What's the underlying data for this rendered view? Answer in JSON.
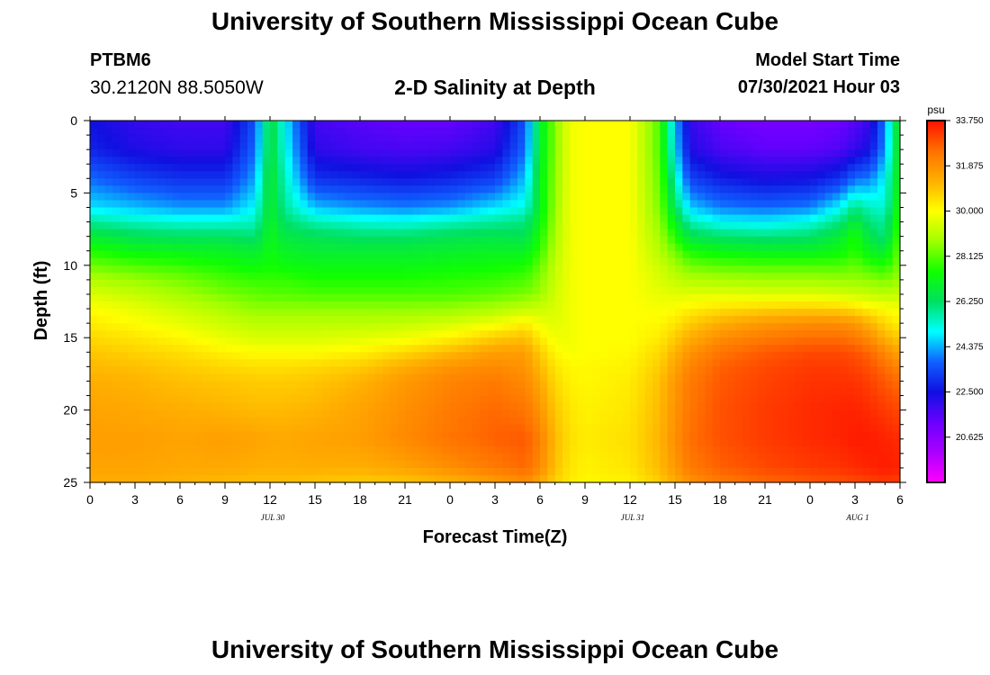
{
  "header": {
    "institution": "University of Southern Mississippi Ocean Cube",
    "station": "PTBM6",
    "coordinates": "30.2120N  88.5050W",
    "plot_title": "2-D Salinity at Depth",
    "model_start_label": "Model Start Time",
    "model_start_value": "07/30/2021 Hour 03"
  },
  "footer": {
    "institution": "University of Southern Mississippi Ocean Cube"
  },
  "chart_data": {
    "type": "heatmap",
    "title": "2-D Salinity at Depth",
    "xlabel": "Forecast Time(Z)",
    "ylabel": "Depth (ft)",
    "x_tick_labels": [
      "0",
      "3",
      "6",
      "9",
      "12",
      "15",
      "18",
      "21",
      "0",
      "3",
      "6",
      "9",
      "12",
      "15",
      "18",
      "21",
      "0",
      "3",
      "6"
    ],
    "x_range_hours": [
      0,
      54
    ],
    "date_labels": [
      {
        "hour": 12,
        "label": "JUL 30"
      },
      {
        "hour": 36,
        "label": "JUL 31"
      },
      {
        "hour": 51,
        "label": "AUG 1"
      }
    ],
    "y_ticks": [
      "0",
      "5",
      "10",
      "15",
      "20",
      "25"
    ],
    "ylim": [
      0,
      25
    ],
    "colorbar": {
      "unit": "psu",
      "min": 18.75,
      "max": 33.75,
      "labels": [
        "33.750",
        "31.875",
        "30.000",
        "28.125",
        "26.250",
        "24.375",
        "22.500",
        "20.625"
      ],
      "colors": [
        "#ff00ff",
        "#aa00ff",
        "#6a00ff",
        "#1010e0",
        "#1060ff",
        "#00ffff",
        "#00e060",
        "#10ff00",
        "#a0ff00",
        "#ffff00",
        "#ffb000",
        "#ff7000",
        "#ff1000"
      ]
    },
    "depths_ft": [
      0,
      2,
      4,
      6,
      7,
      8,
      9,
      10,
      11,
      12,
      13,
      14,
      15,
      16,
      17,
      18,
      20,
      22,
      24,
      25
    ],
    "hours": [
      0,
      3,
      6,
      9,
      11,
      12,
      13,
      15,
      18,
      21,
      24,
      27,
      29,
      30,
      31,
      32,
      33,
      36,
      38,
      39,
      40,
      42,
      45,
      48,
      50,
      51,
      52,
      53,
      54
    ],
    "salinity_psu": [
      [
        22.5,
        22.0,
        21.8,
        21.8,
        23.5,
        26.8,
        25.0,
        21.8,
        21.5,
        21.3,
        21.3,
        21.8,
        23.5,
        26.8,
        28.5,
        29.8,
        30.0,
        30.0,
        28.0,
        24.5,
        22.0,
        21.3,
        21.0,
        21.0,
        21.2,
        21.5,
        22.0,
        24.0,
        27.5
      ],
      [
        22.8,
        22.3,
        22.1,
        22.1,
        23.8,
        26.8,
        25.2,
        22.1,
        21.8,
        21.7,
        21.8,
        22.2,
        23.8,
        26.8,
        28.5,
        29.8,
        30.0,
        30.0,
        28.0,
        24.8,
        22.3,
        21.7,
        21.4,
        21.4,
        21.6,
        22.0,
        22.5,
        24.2,
        27.5
      ],
      [
        23.8,
        23.3,
        23.0,
        23.0,
        24.3,
        27.0,
        25.5,
        23.0,
        22.8,
        22.6,
        22.8,
        23.2,
        24.5,
        27.0,
        28.6,
        29.8,
        30.0,
        30.0,
        28.2,
        25.5,
        23.3,
        22.7,
        22.4,
        22.5,
        23.0,
        23.8,
        24.0,
        25.0,
        27.5
      ],
      [
        24.8,
        24.5,
        24.2,
        24.2,
        25.0,
        27.0,
        25.8,
        24.5,
        24.2,
        24.0,
        24.2,
        24.8,
        25.2,
        27.0,
        28.7,
        29.8,
        30.0,
        30.0,
        28.4,
        26.3,
        24.6,
        24.0,
        23.8,
        24.0,
        25.0,
        26.0,
        25.5,
        25.3,
        27.8
      ],
      [
        25.8,
        25.5,
        25.3,
        25.3,
        25.5,
        27.1,
        26.2,
        25.6,
        25.3,
        25.2,
        25.5,
        25.8,
        26.0,
        27.2,
        28.8,
        29.8,
        30.0,
        30.0,
        28.6,
        27.0,
        25.6,
        25.0,
        24.9,
        25.2,
        26.0,
        26.8,
        26.0,
        25.8,
        28.0
      ],
      [
        26.8,
        26.4,
        26.3,
        26.3,
        26.1,
        27.2,
        26.6,
        26.4,
        26.2,
        26.2,
        26.4,
        26.5,
        26.4,
        27.5,
        28.9,
        29.8,
        30.0,
        30.0,
        28.8,
        27.6,
        26.5,
        26.2,
        26.0,
        26.2,
        26.8,
        27.5,
        26.5,
        26.0,
        28.2
      ],
      [
        27.6,
        27.2,
        27.1,
        27.0,
        26.8,
        27.3,
        27.0,
        26.8,
        26.8,
        26.8,
        26.9,
        27.0,
        27.0,
        27.8,
        29.0,
        29.8,
        30.0,
        30.0,
        29.0,
        28.3,
        27.5,
        27.2,
        27.0,
        27.0,
        27.3,
        27.7,
        27.0,
        26.8,
        28.4
      ],
      [
        28.3,
        28.0,
        27.8,
        27.5,
        27.3,
        27.5,
        27.3,
        27.2,
        27.2,
        27.2,
        27.3,
        27.4,
        27.5,
        28.2,
        29.2,
        29.8,
        30.0,
        30.0,
        29.3,
        28.8,
        28.3,
        28.1,
        28.0,
        28.0,
        28.0,
        28.2,
        27.8,
        27.6,
        28.5
      ],
      [
        29.0,
        28.7,
        28.4,
        28.0,
        27.8,
        27.8,
        27.8,
        27.6,
        27.6,
        27.6,
        27.7,
        27.8,
        28.0,
        28.5,
        29.3,
        29.8,
        30.0,
        30.0,
        29.5,
        29.2,
        29.0,
        28.9,
        28.8,
        28.8,
        28.7,
        28.7,
        28.6,
        28.4,
        28.8
      ],
      [
        29.5,
        29.2,
        28.8,
        28.4,
        28.2,
        28.1,
        28.1,
        28.0,
        28.0,
        28.0,
        28.0,
        28.2,
        28.4,
        28.7,
        29.4,
        29.8,
        30.0,
        30.0,
        29.7,
        29.6,
        29.6,
        29.6,
        29.5,
        29.5,
        29.4,
        29.3,
        29.2,
        29.1,
        29.2
      ],
      [
        30.0,
        29.7,
        29.3,
        28.9,
        28.6,
        28.6,
        28.6,
        28.6,
        28.6,
        28.6,
        28.7,
        28.9,
        29.2,
        29.3,
        29.5,
        29.8,
        30.0,
        30.0,
        29.9,
        30.0,
        30.2,
        30.5,
        30.7,
        30.8,
        30.7,
        30.5,
        30.2,
        30.0,
        29.8
      ],
      [
        30.3,
        30.0,
        29.7,
        29.3,
        29.1,
        29.1,
        29.1,
        29.1,
        29.1,
        29.2,
        29.4,
        29.8,
        30.2,
        29.8,
        29.6,
        29.8,
        30.0,
        30.0,
        30.1,
        30.4,
        30.8,
        31.3,
        31.7,
        31.9,
        31.9,
        31.7,
        31.2,
        30.6,
        30.2
      ],
      [
        30.6,
        30.4,
        30.1,
        29.7,
        29.5,
        29.5,
        29.5,
        29.5,
        29.6,
        29.8,
        30.2,
        30.8,
        31.0,
        30.3,
        29.8,
        29.8,
        30.0,
        30.0,
        30.3,
        30.8,
        31.3,
        31.9,
        32.3,
        32.5,
        32.5,
        32.3,
        31.9,
        31.2,
        30.8
      ],
      [
        30.9,
        30.7,
        30.5,
        30.2,
        30.0,
        30.0,
        30.0,
        30.0,
        30.2,
        30.6,
        31.1,
        31.6,
        31.6,
        30.8,
        30.1,
        29.9,
        30.0,
        30.1,
        30.6,
        31.2,
        31.8,
        32.4,
        32.8,
        33.0,
        33.0,
        32.9,
        32.6,
        32.0,
        31.4
      ],
      [
        31.1,
        31.0,
        30.8,
        30.6,
        30.5,
        30.5,
        30.5,
        30.6,
        30.8,
        31.3,
        31.8,
        32.0,
        31.8,
        31.1,
        30.4,
        30.1,
        30.1,
        30.2,
        30.8,
        31.5,
        32.1,
        32.7,
        33.0,
        33.2,
        33.2,
        33.1,
        32.9,
        32.5,
        32.0
      ],
      [
        31.3,
        31.2,
        31.0,
        30.9,
        30.8,
        30.8,
        30.8,
        30.9,
        31.2,
        31.7,
        32.1,
        32.3,
        32.0,
        31.4,
        30.6,
        30.2,
        30.1,
        30.3,
        31.0,
        31.7,
        32.3,
        32.8,
        33.1,
        33.3,
        33.3,
        33.3,
        33.1,
        32.8,
        32.5
      ],
      [
        31.5,
        31.4,
        31.3,
        31.2,
        31.1,
        31.1,
        31.1,
        31.2,
        31.5,
        31.9,
        32.3,
        32.6,
        32.4,
        31.8,
        30.9,
        30.4,
        30.2,
        30.4,
        31.1,
        31.8,
        32.4,
        32.9,
        33.2,
        33.4,
        33.5,
        33.5,
        33.4,
        33.2,
        33.0
      ],
      [
        31.6,
        31.6,
        31.5,
        31.6,
        31.5,
        31.4,
        31.4,
        31.5,
        31.6,
        32.0,
        32.4,
        32.7,
        32.8,
        32.2,
        31.1,
        30.5,
        30.3,
        30.5,
        31.2,
        31.9,
        32.5,
        32.9,
        33.2,
        33.4,
        33.5,
        33.6,
        33.6,
        33.5,
        33.4
      ],
      [
        31.5,
        31.5,
        31.4,
        31.4,
        31.3,
        31.3,
        31.3,
        31.3,
        31.3,
        31.5,
        31.9,
        32.3,
        32.6,
        32.0,
        31.0,
        30.4,
        30.2,
        30.4,
        31.1,
        31.7,
        32.3,
        32.7,
        33.0,
        33.2,
        33.3,
        33.4,
        33.5,
        33.6,
        33.5
      ],
      [
        31.3,
        31.3,
        31.2,
        31.1,
        31.0,
        31.0,
        31.0,
        30.9,
        30.8,
        30.9,
        31.2,
        31.6,
        31.9,
        31.4,
        30.7,
        30.3,
        30.1,
        30.2,
        30.8,
        31.3,
        31.8,
        32.3,
        32.6,
        32.8,
        32.9,
        33.0,
        33.1,
        33.2,
        33.1
      ]
    ]
  }
}
